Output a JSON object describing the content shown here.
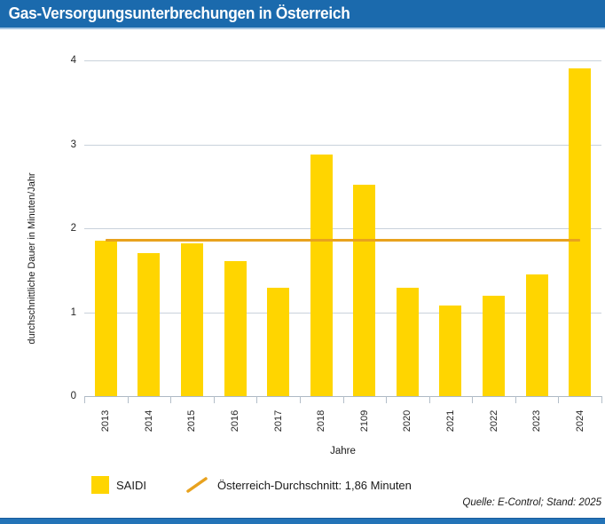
{
  "header": {
    "title": "Gas-Versorgungsunterbrechungen in Österreich"
  },
  "chart_data": {
    "type": "bar",
    "title": "Gas-Versorgungsunterbrechungen in Österreich",
    "categories": [
      "2013",
      "2014",
      "2015",
      "2016",
      "2017",
      "2018",
      "2109",
      "2020",
      "2021",
      "2022",
      "2023",
      "2024"
    ],
    "series": [
      {
        "name": "SAIDI",
        "values": [
          1.85,
          1.7,
          1.82,
          1.61,
          1.29,
          2.88,
          2.52,
          1.29,
          1.08,
          1.2,
          1.45,
          3.9
        ]
      }
    ],
    "average_line": {
      "label": "Österreich-Durchschnitt: 1,86 Minuten",
      "value": 1.86
    },
    "xlabel": "Jahre",
    "ylabel": "durchschnittliche Dauer in Minuten/Jahr",
    "ylim": [
      0,
      4
    ],
    "yticks": [
      0,
      1,
      2,
      3,
      4
    ],
    "grid": true,
    "legend_position": "bottom",
    "bar_color": "#FFD500",
    "line_color": "#E8A21E"
  },
  "footer": {
    "source": "Quelle: E-Control; Stand: 2025"
  },
  "colors": {
    "header_blue": "#1B6AAD",
    "header_underline": "#A6C6E3",
    "bar_yellow": "#FFD500",
    "average_orange": "#E8A21E",
    "gridline": "#C9D2DB",
    "bottom_bar_blue": "#2373B7"
  }
}
